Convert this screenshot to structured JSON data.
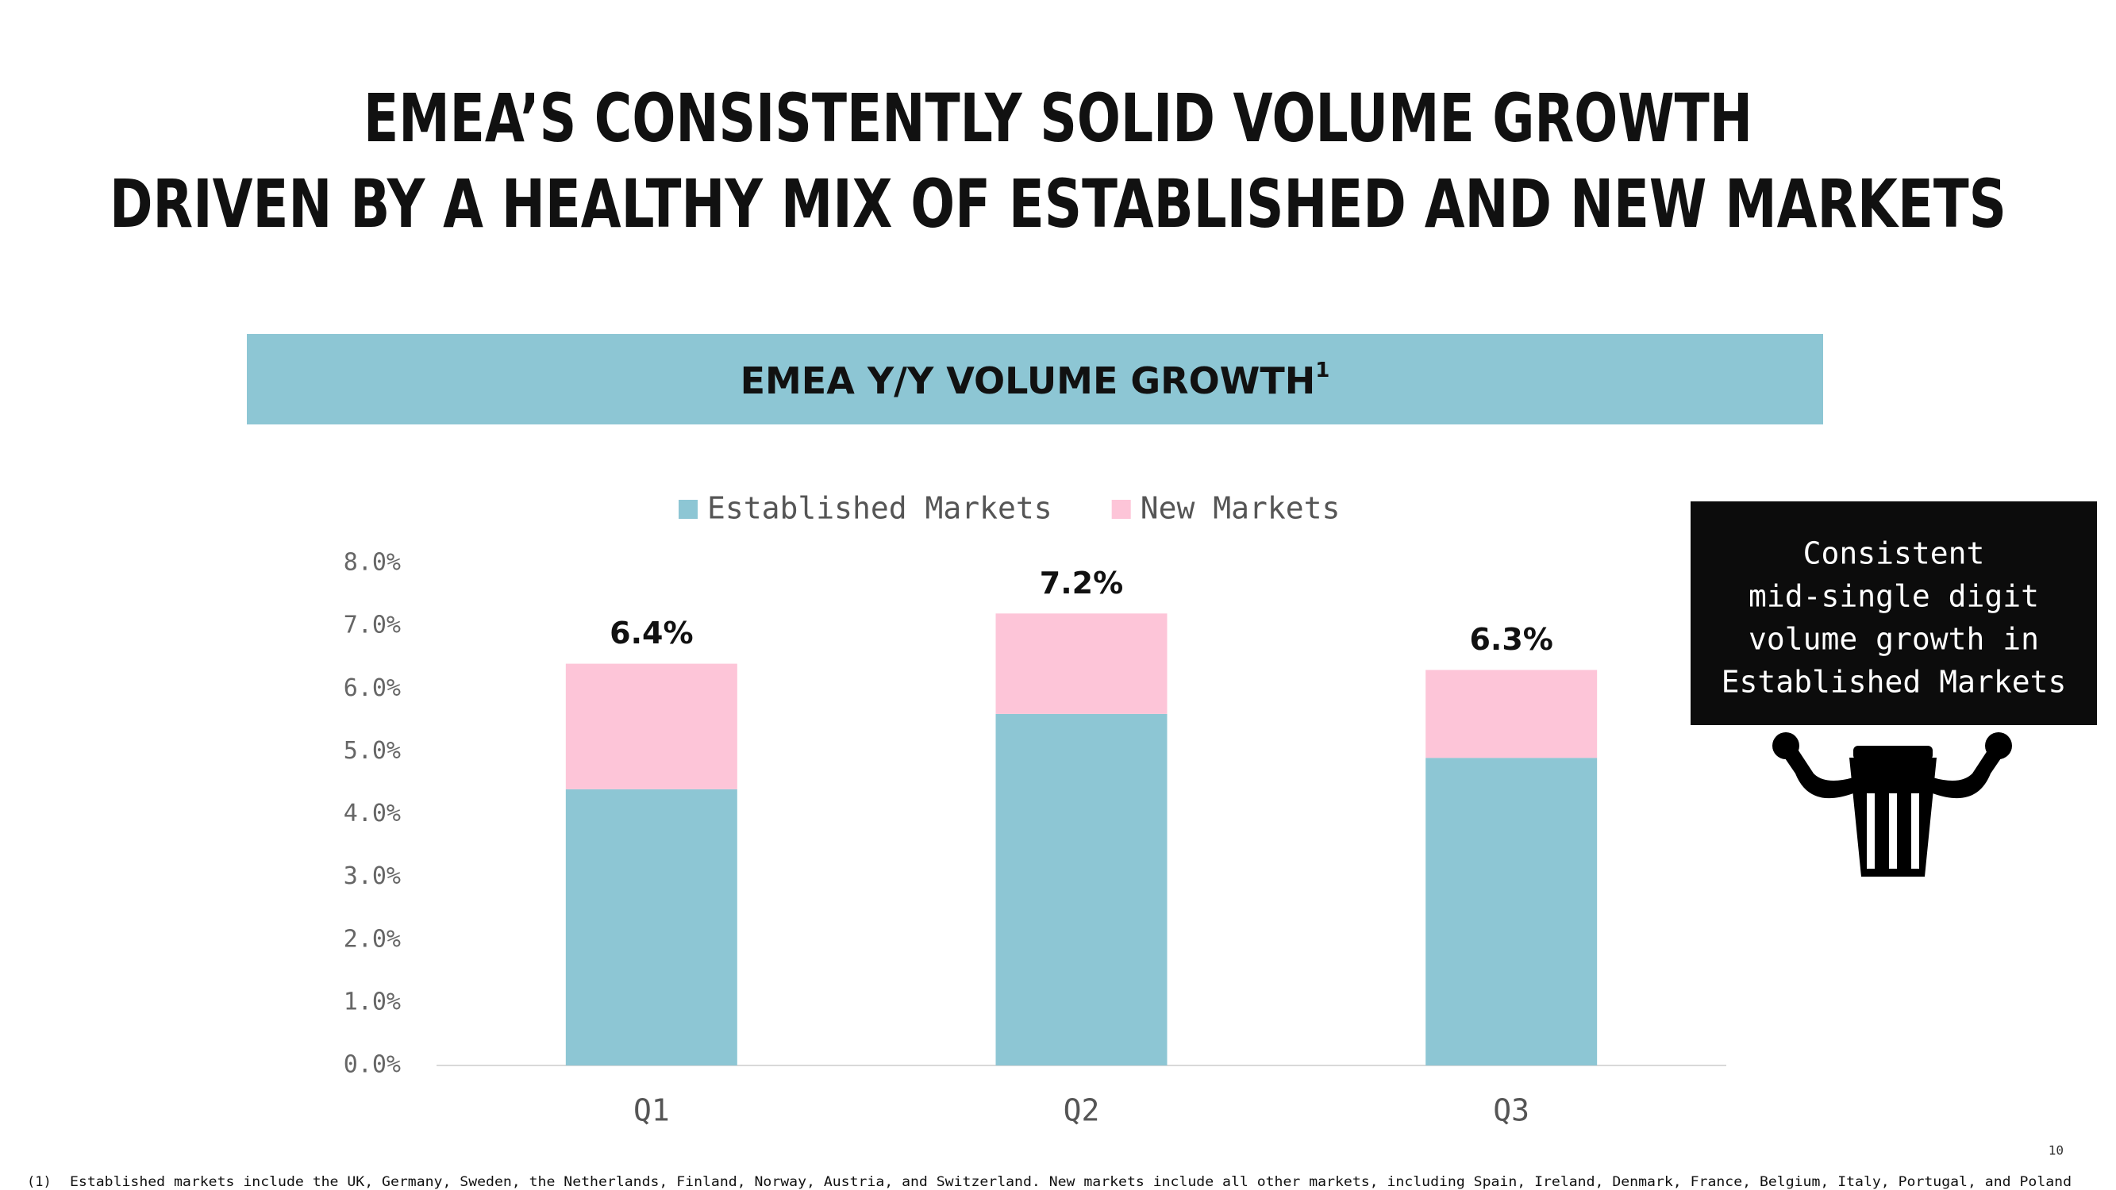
{
  "header": {
    "title_lines": [
      "EMEA’S CONSISTENTLY SOLID VOLUME GROWTH",
      "DRIVEN BY A HEALTHY MIX OF ESTABLISHED AND NEW MARKETS"
    ]
  },
  "chart_data": {
    "type": "stacked_bar",
    "title": "EMEA Y/Y VOLUME GROWTH",
    "title_superscript": "1",
    "categories": [
      "Q1",
      "Q2",
      "Q3"
    ],
    "series": [
      {
        "name": "Established Markets",
        "color": "#8dc6d4",
        "values": [
          4.4,
          5.6,
          4.9
        ]
      },
      {
        "name": "New Markets",
        "color": "#fdc5d8",
        "values": [
          2.0,
          1.6,
          1.4
        ]
      }
    ],
    "totals": [
      6.4,
      7.2,
      6.3
    ],
    "totals_labels": [
      "6.4%",
      "7.2%",
      "6.3%"
    ],
    "ylim": [
      0,
      8
    ],
    "yticks": [
      {
        "value": 0,
        "label": "0.0%"
      },
      {
        "value": 1,
        "label": "1.0%"
      },
      {
        "value": 2,
        "label": "2.0%"
      },
      {
        "value": 3,
        "label": "3.0%"
      },
      {
        "value": 4,
        "label": "4.0%"
      },
      {
        "value": 5,
        "label": "5.0%"
      },
      {
        "value": 6,
        "label": "6.0%"
      },
      {
        "value": 7,
        "label": "7.0%"
      },
      {
        "value": 8,
        "label": "8.0%"
      }
    ],
    "legend": "top"
  },
  "callout": {
    "lines": [
      "Consistent",
      "mid-single digit",
      "volume growth in",
      "Established Markets"
    ]
  },
  "footnote": {
    "marker": "(1)",
    "text": "Established markets include the UK, Germany, Sweden, the Netherlands, Finland, Norway, Austria, and Switzerland.  New markets include all other markets, including Spain, Ireland, Denmark, France, Belgium, Italy, Portugal, and Poland"
  },
  "page_number": "10"
}
